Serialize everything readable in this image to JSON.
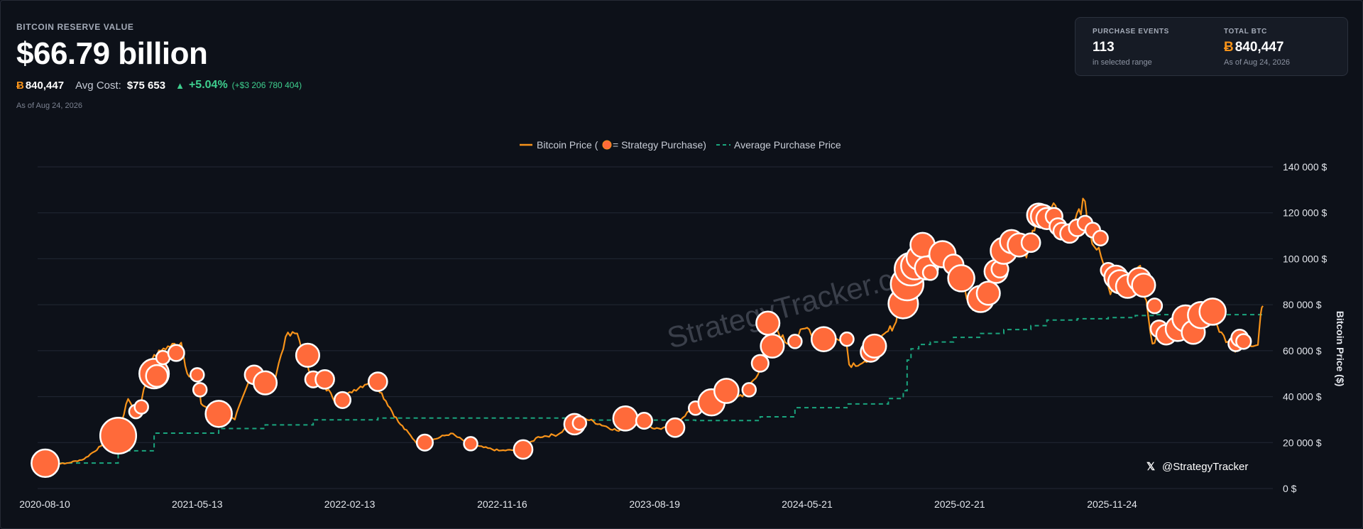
{
  "header": {
    "label": "BITCOIN RESERVE VALUE",
    "value": "$66.79 billion",
    "btc_symbol": "Ƀ",
    "btc_total": "840,447",
    "avg_cost_label": "Avg Cost:",
    "avg_cost_value": "$75 653",
    "gain_arrow": "▲",
    "gain_pct": "+5.04%",
    "gain_abs": "(+$3 206 780 404)",
    "as_of": "As of Aug 24, 2026"
  },
  "card": {
    "events_label": "PURCHASE EVENTS",
    "events_value": "113",
    "events_sub": "in selected range",
    "btc_label": "TOTAL BTC",
    "btc_symbol": "Ƀ",
    "btc_value": "840,447",
    "btc_sub": "As of Aug 24, 2026"
  },
  "watermark": "StrategyTracker.com",
  "handle": "@StrategyTracker",
  "handle_icon": "x-logo-icon",
  "colors": {
    "price_line": "#f7931a",
    "purchase_fill": "#ff6a3a",
    "purchase_stroke": "#ffffff",
    "avg_line": "#1aa57e",
    "gain": "#3ecf8e",
    "background": "#0d1119"
  },
  "chart_data": {
    "type": "line",
    "legend": {
      "placement": "top-center",
      "price_label_pre": "Bitcoin Price (",
      "price_label_post": " = Strategy Purchase)",
      "avg_label": "Average Purchase Price"
    },
    "ylabel": "Bitcoin Price ($)",
    "ylim": [
      0,
      140000
    ],
    "y_ticks": [
      0,
      20000,
      40000,
      60000,
      80000,
      100000,
      120000,
      140000
    ],
    "y_tick_labels": [
      "0 $",
      "20 000 $",
      "40 000 $",
      "60 000 $",
      "80 000 $",
      "100 000 $",
      "120 000 $",
      "140 000 $"
    ],
    "xlim": [
      "2020-08-10",
      "2026-08-24"
    ],
    "x_ticks": [
      "2020-08-10",
      "2021-05-13",
      "2022-02-13",
      "2022-11-16",
      "2023-08-19",
      "2024-05-21",
      "2025-02-21",
      "2025-11-24"
    ],
    "grid": true,
    "series": [
      {
        "name": "Bitcoin Price",
        "style": "line",
        "points": [
          [
            "2020-08-10",
            11700
          ],
          [
            "2020-09-15",
            10800
          ],
          [
            "2020-10-20",
            12800
          ],
          [
            "2020-11-20",
            18500
          ],
          [
            "2020-12-20",
            23500
          ],
          [
            "2021-01-08",
            39000
          ],
          [
            "2021-01-25",
            32500
          ],
          [
            "2021-02-20",
            56000
          ],
          [
            "2021-03-13",
            61000
          ],
          [
            "2021-04-14",
            63500
          ],
          [
            "2021-04-25",
            50000
          ],
          [
            "2021-05-13",
            49000
          ],
          [
            "2021-05-20",
            37000
          ],
          [
            "2021-06-22",
            31500
          ],
          [
            "2021-07-20",
            30000
          ],
          [
            "2021-08-15",
            47000
          ],
          [
            "2021-09-06",
            52000
          ],
          [
            "2021-09-25",
            42500
          ],
          [
            "2021-10-20",
            66000
          ],
          [
            "2021-11-10",
            67500
          ],
          [
            "2021-12-05",
            49000
          ],
          [
            "2022-01-10",
            41500
          ],
          [
            "2022-01-24",
            35500
          ],
          [
            "2022-02-13",
            42000
          ],
          [
            "2022-03-28",
            47500
          ],
          [
            "2022-05-12",
            29000
          ],
          [
            "2022-06-18",
            19000
          ],
          [
            "2022-08-15",
            24000
          ],
          [
            "2022-09-20",
            19000
          ],
          [
            "2022-11-10",
            16500
          ],
          [
            "2022-12-20",
            16800
          ],
          [
            "2023-01-20",
            22500
          ],
          [
            "2023-02-25",
            23500
          ],
          [
            "2023-03-20",
            28000
          ],
          [
            "2023-04-15",
            30500
          ],
          [
            "2023-06-15",
            25000
          ],
          [
            "2023-07-15",
            31000
          ],
          [
            "2023-08-19",
            26000
          ],
          [
            "2023-09-15",
            26500
          ],
          [
            "2023-10-25",
            34500
          ],
          [
            "2023-12-05",
            42000
          ],
          [
            "2024-01-25",
            40000
          ],
          [
            "2024-02-26",
            52000
          ],
          [
            "2024-03-14",
            73000
          ],
          [
            "2024-04-15",
            63000
          ],
          [
            "2024-05-21",
            70000
          ],
          [
            "2024-06-25",
            61500
          ],
          [
            "2024-07-29",
            68000
          ],
          [
            "2024-08-05",
            54000
          ],
          [
            "2024-09-06",
            55000
          ],
          [
            "2024-09-30",
            64000
          ],
          [
            "2024-10-29",
            72500
          ],
          [
            "2024-11-12",
            89000
          ],
          [
            "2024-11-22",
            98000
          ],
          [
            "2024-12-17",
            106000
          ],
          [
            "2024-12-30",
            92500
          ],
          [
            "2025-01-21",
            106000
          ],
          [
            "2025-02-21",
            97500
          ],
          [
            "2025-03-10",
            80000
          ],
          [
            "2025-04-08",
            77000
          ],
          [
            "2025-05-22",
            110000
          ],
          [
            "2025-06-22",
            100500
          ],
          [
            "2025-07-14",
            121500
          ],
          [
            "2025-08-14",
            123000
          ],
          [
            "2025-08-30",
            108500
          ],
          [
            "2025-10-06",
            125000
          ],
          [
            "2025-10-11",
            111500
          ],
          [
            "2025-11-04",
            101000
          ],
          [
            "2025-11-21",
            84500
          ],
          [
            "2025-11-24",
            87500
          ],
          [
            "2026-01-14",
            97000
          ],
          [
            "2026-02-05",
            63000
          ],
          [
            "2026-03-04",
            71000
          ],
          [
            "2026-03-25",
            67500
          ],
          [
            "2026-04-14",
            76000
          ],
          [
            "2026-05-10",
            80500
          ],
          [
            "2026-06-10",
            68000
          ],
          [
            "2026-07-05",
            59500
          ],
          [
            "2026-07-25",
            64000
          ],
          [
            "2026-08-15",
            62500
          ],
          [
            "2026-08-20",
            76000
          ],
          [
            "2026-08-24",
            79500
          ]
        ]
      },
      {
        "name": "Average Purchase Price",
        "style": "step-dashed",
        "points": [
          [
            "2020-08-10",
            11100
          ],
          [
            "2020-12-21",
            16400
          ],
          [
            "2021-02-24",
            24100
          ],
          [
            "2021-06-21",
            26100
          ],
          [
            "2021-09-13",
            27700
          ],
          [
            "2021-12-09",
            29900
          ],
          [
            "2022-04-05",
            30700
          ],
          [
            "2023-03-27",
            29800
          ],
          [
            "2023-11-01",
            29600
          ],
          [
            "2024-02-26",
            31200
          ],
          [
            "2024-04-29",
            35200
          ],
          [
            "2024-08-01",
            36800
          ],
          [
            "2024-10-15",
            39200
          ],
          [
            "2024-11-11",
            42600
          ],
          [
            "2024-11-18",
            55900
          ],
          [
            "2024-11-25",
            60800
          ],
          [
            "2024-12-09",
            62700
          ],
          [
            "2024-12-30",
            63800
          ],
          [
            "2025-02-10",
            65800
          ],
          [
            "2025-03-31",
            67500
          ],
          [
            "2025-05-12",
            69200
          ],
          [
            "2025-06-30",
            70900
          ],
          [
            "2025-07-29",
            73300
          ],
          [
            "2025-09-22",
            73900
          ],
          [
            "2025-11-17",
            74400
          ],
          [
            "2026-01-05",
            75300
          ],
          [
            "2026-02-09",
            75700
          ],
          [
            "2026-08-24",
            75653
          ]
        ]
      },
      {
        "name": "Strategy Purchase",
        "style": "bubble",
        "note": "value = purchase price ($), size = relative purchase size (1-5)",
        "points": [
          [
            "2020-08-11",
            11000,
            3.2
          ],
          [
            "2020-12-21",
            23000,
            4.5
          ],
          [
            "2021-01-22",
            33500,
            1
          ],
          [
            "2021-02-01",
            35500,
            1
          ],
          [
            "2021-02-24",
            50000,
            3.5
          ],
          [
            "2021-03-01",
            49000,
            2.3
          ],
          [
            "2021-03-12",
            57000,
            1
          ],
          [
            "2021-04-05",
            59000,
            1.4
          ],
          [
            "2021-05-13",
            49500,
            1
          ],
          [
            "2021-05-18",
            43000,
            1
          ],
          [
            "2021-06-21",
            32500,
            3
          ],
          [
            "2021-08-24",
            49500,
            1.8
          ],
          [
            "2021-09-13",
            46000,
            2.5
          ],
          [
            "2021-11-29",
            58000,
            2.5
          ],
          [
            "2021-12-09",
            47500,
            1.4
          ],
          [
            "2021-12-30",
            47500,
            1.8
          ],
          [
            "2022-01-31",
            38500,
            1.4
          ],
          [
            "2022-04-05",
            46500,
            1.8
          ],
          [
            "2022-06-29",
            20000,
            1.4
          ],
          [
            "2022-09-20",
            19500,
            1
          ],
          [
            "2022-12-24",
            17000,
            1.8
          ],
          [
            "2023-03-27",
            28000,
            2.1
          ],
          [
            "2023-04-05",
            28500,
            1
          ],
          [
            "2023-06-27",
            30500,
            2.7
          ],
          [
            "2023-07-31",
            29500,
            1.4
          ],
          [
            "2023-09-25",
            26500,
            1.8
          ],
          [
            "2023-11-01",
            35000,
            1
          ],
          [
            "2023-11-30",
            37500,
            3
          ],
          [
            "2023-12-27",
            42500,
            2.7
          ],
          [
            "2024-02-06",
            43000,
            1
          ],
          [
            "2024-02-26",
            54500,
            1.5
          ],
          [
            "2024-03-11",
            72000,
            2.5
          ],
          [
            "2024-03-19",
            62000,
            2.5
          ],
          [
            "2024-04-29",
            64000,
            1
          ],
          [
            "2024-06-20",
            65000,
            2.7
          ],
          [
            "2024-08-01",
            65000,
            1
          ],
          [
            "2024-09-13",
            59500,
            2
          ],
          [
            "2024-09-20",
            62000,
            2.5
          ],
          [
            "2024-11-11",
            80500,
            3.5
          ],
          [
            "2024-11-18",
            89000,
            4
          ],
          [
            "2024-11-25",
            95500,
            4
          ],
          [
            "2024-12-02",
            97000,
            3.2
          ],
          [
            "2024-12-09",
            100500,
            2.7
          ],
          [
            "2024-12-16",
            106000,
            2.7
          ],
          [
            "2024-12-23",
            96000,
            2.5
          ],
          [
            "2024-12-30",
            94000,
            1.2
          ],
          [
            "2025-01-21",
            102000,
            3
          ],
          [
            "2025-02-10",
            97500,
            2
          ],
          [
            "2025-02-24",
            91500,
            3
          ],
          [
            "2025-03-31",
            82500,
            3
          ],
          [
            "2025-04-14",
            85000,
            2.5
          ],
          [
            "2025-04-28",
            94500,
            2.5
          ],
          [
            "2025-05-05",
            95500,
            1.5
          ],
          [
            "2025-05-12",
            103500,
            3
          ],
          [
            "2025-05-26",
            107500,
            2.5
          ],
          [
            "2025-06-09",
            106000,
            2.5
          ],
          [
            "2025-06-30",
            107000,
            1.8
          ],
          [
            "2025-07-14",
            119000,
            2.5
          ],
          [
            "2025-07-21",
            118500,
            2.5
          ],
          [
            "2025-07-29",
            117500,
            2.2
          ],
          [
            "2025-08-11",
            118500,
            1.5
          ],
          [
            "2025-08-18",
            114000,
            1.5
          ],
          [
            "2025-08-25",
            112000,
            1.5
          ],
          [
            "2025-09-08",
            111000,
            1.8
          ],
          [
            "2025-09-22",
            113500,
            1.5
          ],
          [
            "2025-10-06",
            115500,
            1.2
          ],
          [
            "2025-10-20",
            112500,
            1.2
          ],
          [
            "2025-11-03",
            109000,
            1.2
          ],
          [
            "2025-11-17",
            95000,
            1.2
          ],
          [
            "2025-12-01",
            92000,
            2.5
          ],
          [
            "2025-12-08",
            90000,
            2.5
          ],
          [
            "2025-12-22",
            88000,
            2.5
          ],
          [
            "2026-01-12",
            91000,
            2.5
          ],
          [
            "2026-01-20",
            88500,
            2.5
          ],
          [
            "2026-02-09",
            79500,
            1.2
          ],
          [
            "2026-02-17",
            69500,
            1.5
          ],
          [
            "2026-03-02",
            67000,
            2
          ],
          [
            "2026-03-23",
            69500,
            2.7
          ],
          [
            "2026-04-06",
            74000,
            3
          ],
          [
            "2026-04-20",
            68000,
            2.5
          ],
          [
            "2026-05-04",
            75500,
            3
          ],
          [
            "2026-05-25",
            77000,
            3
          ],
          [
            "2026-07-06",
            63000,
            1.2
          ],
          [
            "2026-07-13",
            65500,
            1.5
          ],
          [
            "2026-07-20",
            64000,
            1.2
          ]
        ]
      }
    ]
  }
}
